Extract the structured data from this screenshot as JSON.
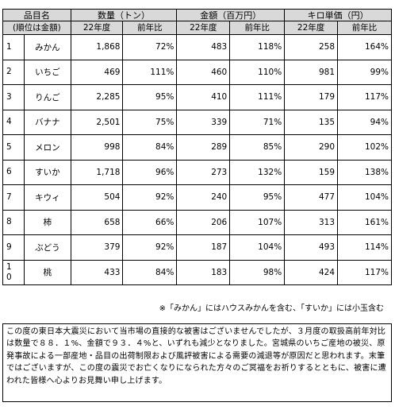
{
  "table": {
    "header": {
      "item_label_1": "品目名",
      "item_label_2": "(順位は金額)",
      "group_qty": "数量（トン）",
      "group_amount": "金額（百万円）",
      "group_unit": "キロ単価（円）",
      "sub_year": "22年度",
      "sub_ratio": "前年比"
    },
    "rows": [
      {
        "rank": "1",
        "name": "みかん",
        "qty": "1,868",
        "qty_r": "72%",
        "amt": "483",
        "amt_r": "118%",
        "unit": "258",
        "unit_r": "164%"
      },
      {
        "rank": "2",
        "name": "いちご",
        "qty": "469",
        "qty_r": "111%",
        "amt": "460",
        "amt_r": "110%",
        "unit": "981",
        "unit_r": "99%"
      },
      {
        "rank": "3",
        "name": "りんご",
        "qty": "2,285",
        "qty_r": "95%",
        "amt": "410",
        "amt_r": "111%",
        "unit": "179",
        "unit_r": "117%"
      },
      {
        "rank": "4",
        "name": "バナナ",
        "qty": "2,501",
        "qty_r": "75%",
        "amt": "339",
        "amt_r": "71%",
        "unit": "135",
        "unit_r": "94%"
      },
      {
        "rank": "5",
        "name": "メロン",
        "qty": "998",
        "qty_r": "84%",
        "amt": "289",
        "amt_r": "85%",
        "unit": "290",
        "unit_r": "102%"
      },
      {
        "rank": "6",
        "name": "すいか",
        "qty": "1,718",
        "qty_r": "96%",
        "amt": "273",
        "amt_r": "132%",
        "unit": "159",
        "unit_r": "138%"
      },
      {
        "rank": "7",
        "name": "キウィ",
        "qty": "504",
        "qty_r": "92%",
        "amt": "240",
        "amt_r": "95%",
        "unit": "477",
        "unit_r": "104%"
      },
      {
        "rank": "8",
        "name": "柿",
        "qty": "658",
        "qty_r": "66%",
        "amt": "206",
        "amt_r": "107%",
        "unit": "313",
        "unit_r": "161%"
      },
      {
        "rank": "9",
        "name": "ぶどう",
        "qty": "379",
        "qty_r": "92%",
        "amt": "187",
        "amt_r": "104%",
        "unit": "493",
        "unit_r": "114%"
      },
      {
        "rank": "1\n0",
        "name": "桃",
        "qty": "433",
        "qty_r": "84%",
        "amt": "183",
        "amt_r": "98%",
        "unit": "424",
        "unit_r": "117%"
      }
    ]
  },
  "note": "※「みかん」にはハウスみかんを含む、「すいか」には小玉含む",
  "paragraph": "この度の東日本大震災において当市場の直接的な被害はございませんでしたが、３月度の取扱高前年対比は数量で８８．１%、金額で９３．４%と、いずれも減少となりました。宮城県のいちご産地の被災、原発事故による一部産地・品目の出荷制限および風評被害による需要の減退等が原因だと思われます。末筆ではございますが、この度の震災でお亡くなりになられた方々のご冥福をお祈りするとともに、被害に遭われた皆様へ心よりお見舞い申し上げます。"
}
